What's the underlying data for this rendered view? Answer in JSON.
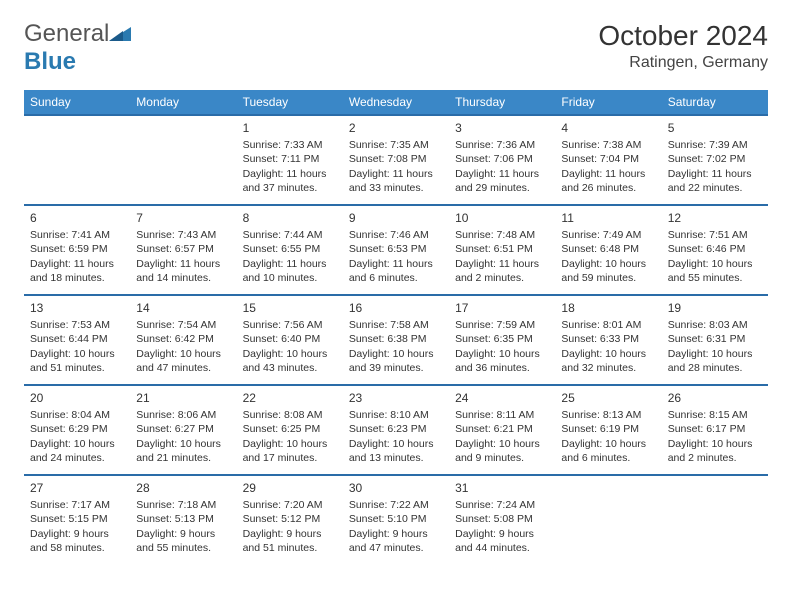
{
  "brand": {
    "word1": "General",
    "word2": "Blue"
  },
  "header": {
    "title": "October 2024",
    "location": "Ratingen, Germany"
  },
  "colors": {
    "header_bg": "#3a87c7",
    "header_text": "#ffffff",
    "row_border": "#2a6ca8",
    "text": "#333333",
    "brand_gray": "#555555",
    "brand_blue": "#2a7ab0",
    "background": "#ffffff"
  },
  "day_labels": [
    "Sunday",
    "Monday",
    "Tuesday",
    "Wednesday",
    "Thursday",
    "Friday",
    "Saturday"
  ],
  "weeks": [
    [
      null,
      null,
      {
        "n": "1",
        "sr": "Sunrise: 7:33 AM",
        "ss": "Sunset: 7:11 PM",
        "dl": "Daylight: 11 hours and 37 minutes."
      },
      {
        "n": "2",
        "sr": "Sunrise: 7:35 AM",
        "ss": "Sunset: 7:08 PM",
        "dl": "Daylight: 11 hours and 33 minutes."
      },
      {
        "n": "3",
        "sr": "Sunrise: 7:36 AM",
        "ss": "Sunset: 7:06 PM",
        "dl": "Daylight: 11 hours and 29 minutes."
      },
      {
        "n": "4",
        "sr": "Sunrise: 7:38 AM",
        "ss": "Sunset: 7:04 PM",
        "dl": "Daylight: 11 hours and 26 minutes."
      },
      {
        "n": "5",
        "sr": "Sunrise: 7:39 AM",
        "ss": "Sunset: 7:02 PM",
        "dl": "Daylight: 11 hours and 22 minutes."
      }
    ],
    [
      {
        "n": "6",
        "sr": "Sunrise: 7:41 AM",
        "ss": "Sunset: 6:59 PM",
        "dl": "Daylight: 11 hours and 18 minutes."
      },
      {
        "n": "7",
        "sr": "Sunrise: 7:43 AM",
        "ss": "Sunset: 6:57 PM",
        "dl": "Daylight: 11 hours and 14 minutes."
      },
      {
        "n": "8",
        "sr": "Sunrise: 7:44 AM",
        "ss": "Sunset: 6:55 PM",
        "dl": "Daylight: 11 hours and 10 minutes."
      },
      {
        "n": "9",
        "sr": "Sunrise: 7:46 AM",
        "ss": "Sunset: 6:53 PM",
        "dl": "Daylight: 11 hours and 6 minutes."
      },
      {
        "n": "10",
        "sr": "Sunrise: 7:48 AM",
        "ss": "Sunset: 6:51 PM",
        "dl": "Daylight: 11 hours and 2 minutes."
      },
      {
        "n": "11",
        "sr": "Sunrise: 7:49 AM",
        "ss": "Sunset: 6:48 PM",
        "dl": "Daylight: 10 hours and 59 minutes."
      },
      {
        "n": "12",
        "sr": "Sunrise: 7:51 AM",
        "ss": "Sunset: 6:46 PM",
        "dl": "Daylight: 10 hours and 55 minutes."
      }
    ],
    [
      {
        "n": "13",
        "sr": "Sunrise: 7:53 AM",
        "ss": "Sunset: 6:44 PM",
        "dl": "Daylight: 10 hours and 51 minutes."
      },
      {
        "n": "14",
        "sr": "Sunrise: 7:54 AM",
        "ss": "Sunset: 6:42 PM",
        "dl": "Daylight: 10 hours and 47 minutes."
      },
      {
        "n": "15",
        "sr": "Sunrise: 7:56 AM",
        "ss": "Sunset: 6:40 PM",
        "dl": "Daylight: 10 hours and 43 minutes."
      },
      {
        "n": "16",
        "sr": "Sunrise: 7:58 AM",
        "ss": "Sunset: 6:38 PM",
        "dl": "Daylight: 10 hours and 39 minutes."
      },
      {
        "n": "17",
        "sr": "Sunrise: 7:59 AM",
        "ss": "Sunset: 6:35 PM",
        "dl": "Daylight: 10 hours and 36 minutes."
      },
      {
        "n": "18",
        "sr": "Sunrise: 8:01 AM",
        "ss": "Sunset: 6:33 PM",
        "dl": "Daylight: 10 hours and 32 minutes."
      },
      {
        "n": "19",
        "sr": "Sunrise: 8:03 AM",
        "ss": "Sunset: 6:31 PM",
        "dl": "Daylight: 10 hours and 28 minutes."
      }
    ],
    [
      {
        "n": "20",
        "sr": "Sunrise: 8:04 AM",
        "ss": "Sunset: 6:29 PM",
        "dl": "Daylight: 10 hours and 24 minutes."
      },
      {
        "n": "21",
        "sr": "Sunrise: 8:06 AM",
        "ss": "Sunset: 6:27 PM",
        "dl": "Daylight: 10 hours and 21 minutes."
      },
      {
        "n": "22",
        "sr": "Sunrise: 8:08 AM",
        "ss": "Sunset: 6:25 PM",
        "dl": "Daylight: 10 hours and 17 minutes."
      },
      {
        "n": "23",
        "sr": "Sunrise: 8:10 AM",
        "ss": "Sunset: 6:23 PM",
        "dl": "Daylight: 10 hours and 13 minutes."
      },
      {
        "n": "24",
        "sr": "Sunrise: 8:11 AM",
        "ss": "Sunset: 6:21 PM",
        "dl": "Daylight: 10 hours and 9 minutes."
      },
      {
        "n": "25",
        "sr": "Sunrise: 8:13 AM",
        "ss": "Sunset: 6:19 PM",
        "dl": "Daylight: 10 hours and 6 minutes."
      },
      {
        "n": "26",
        "sr": "Sunrise: 8:15 AM",
        "ss": "Sunset: 6:17 PM",
        "dl": "Daylight: 10 hours and 2 minutes."
      }
    ],
    [
      {
        "n": "27",
        "sr": "Sunrise: 7:17 AM",
        "ss": "Sunset: 5:15 PM",
        "dl": "Daylight: 9 hours and 58 minutes."
      },
      {
        "n": "28",
        "sr": "Sunrise: 7:18 AM",
        "ss": "Sunset: 5:13 PM",
        "dl": "Daylight: 9 hours and 55 minutes."
      },
      {
        "n": "29",
        "sr": "Sunrise: 7:20 AM",
        "ss": "Sunset: 5:12 PM",
        "dl": "Daylight: 9 hours and 51 minutes."
      },
      {
        "n": "30",
        "sr": "Sunrise: 7:22 AM",
        "ss": "Sunset: 5:10 PM",
        "dl": "Daylight: 9 hours and 47 minutes."
      },
      {
        "n": "31",
        "sr": "Sunrise: 7:24 AM",
        "ss": "Sunset: 5:08 PM",
        "dl": "Daylight: 9 hours and 44 minutes."
      },
      null,
      null
    ]
  ]
}
